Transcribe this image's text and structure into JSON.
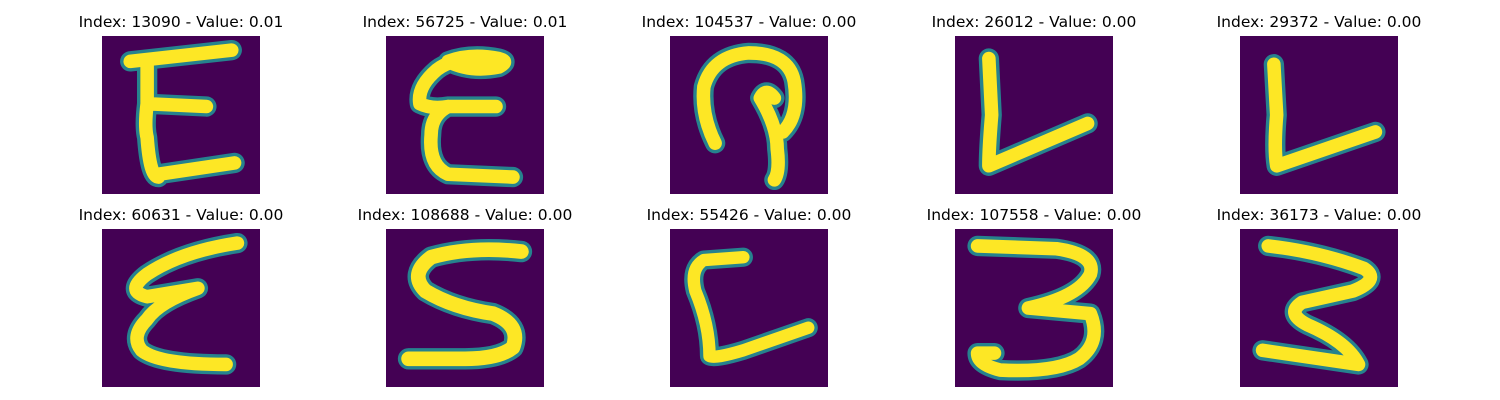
{
  "figure": {
    "background_color": "#ffffff",
    "image_background_color": "#440154",
    "stroke_colors": [
      "#fde725",
      "#b5de2b",
      "#35b779",
      "#26828e"
    ],
    "panels": [
      {
        "title": "Index: 13090 - Value: 0.01",
        "glyph": "E"
      },
      {
        "title": "Index: 56725 - Value: 0.01",
        "glyph": "E"
      },
      {
        "title": "Index: 104537 - Value: 0.00",
        "glyph": "hook"
      },
      {
        "title": "Index: 26012 - Value: 0.00",
        "glyph": "L"
      },
      {
        "title": "Index: 29372 - Value: 0.00",
        "glyph": "L"
      },
      {
        "title": "Index: 60631 - Value: 0.00",
        "glyph": "E"
      },
      {
        "title": "Index: 108688 - Value: 0.00",
        "glyph": "S"
      },
      {
        "title": "Index: 55426 - Value: 0.00",
        "glyph": "L"
      },
      {
        "title": "Index: 107558 - Value: 0.00",
        "glyph": "3"
      },
      {
        "title": "Index: 36173 - Value: 0.00",
        "glyph": "3"
      }
    ]
  }
}
